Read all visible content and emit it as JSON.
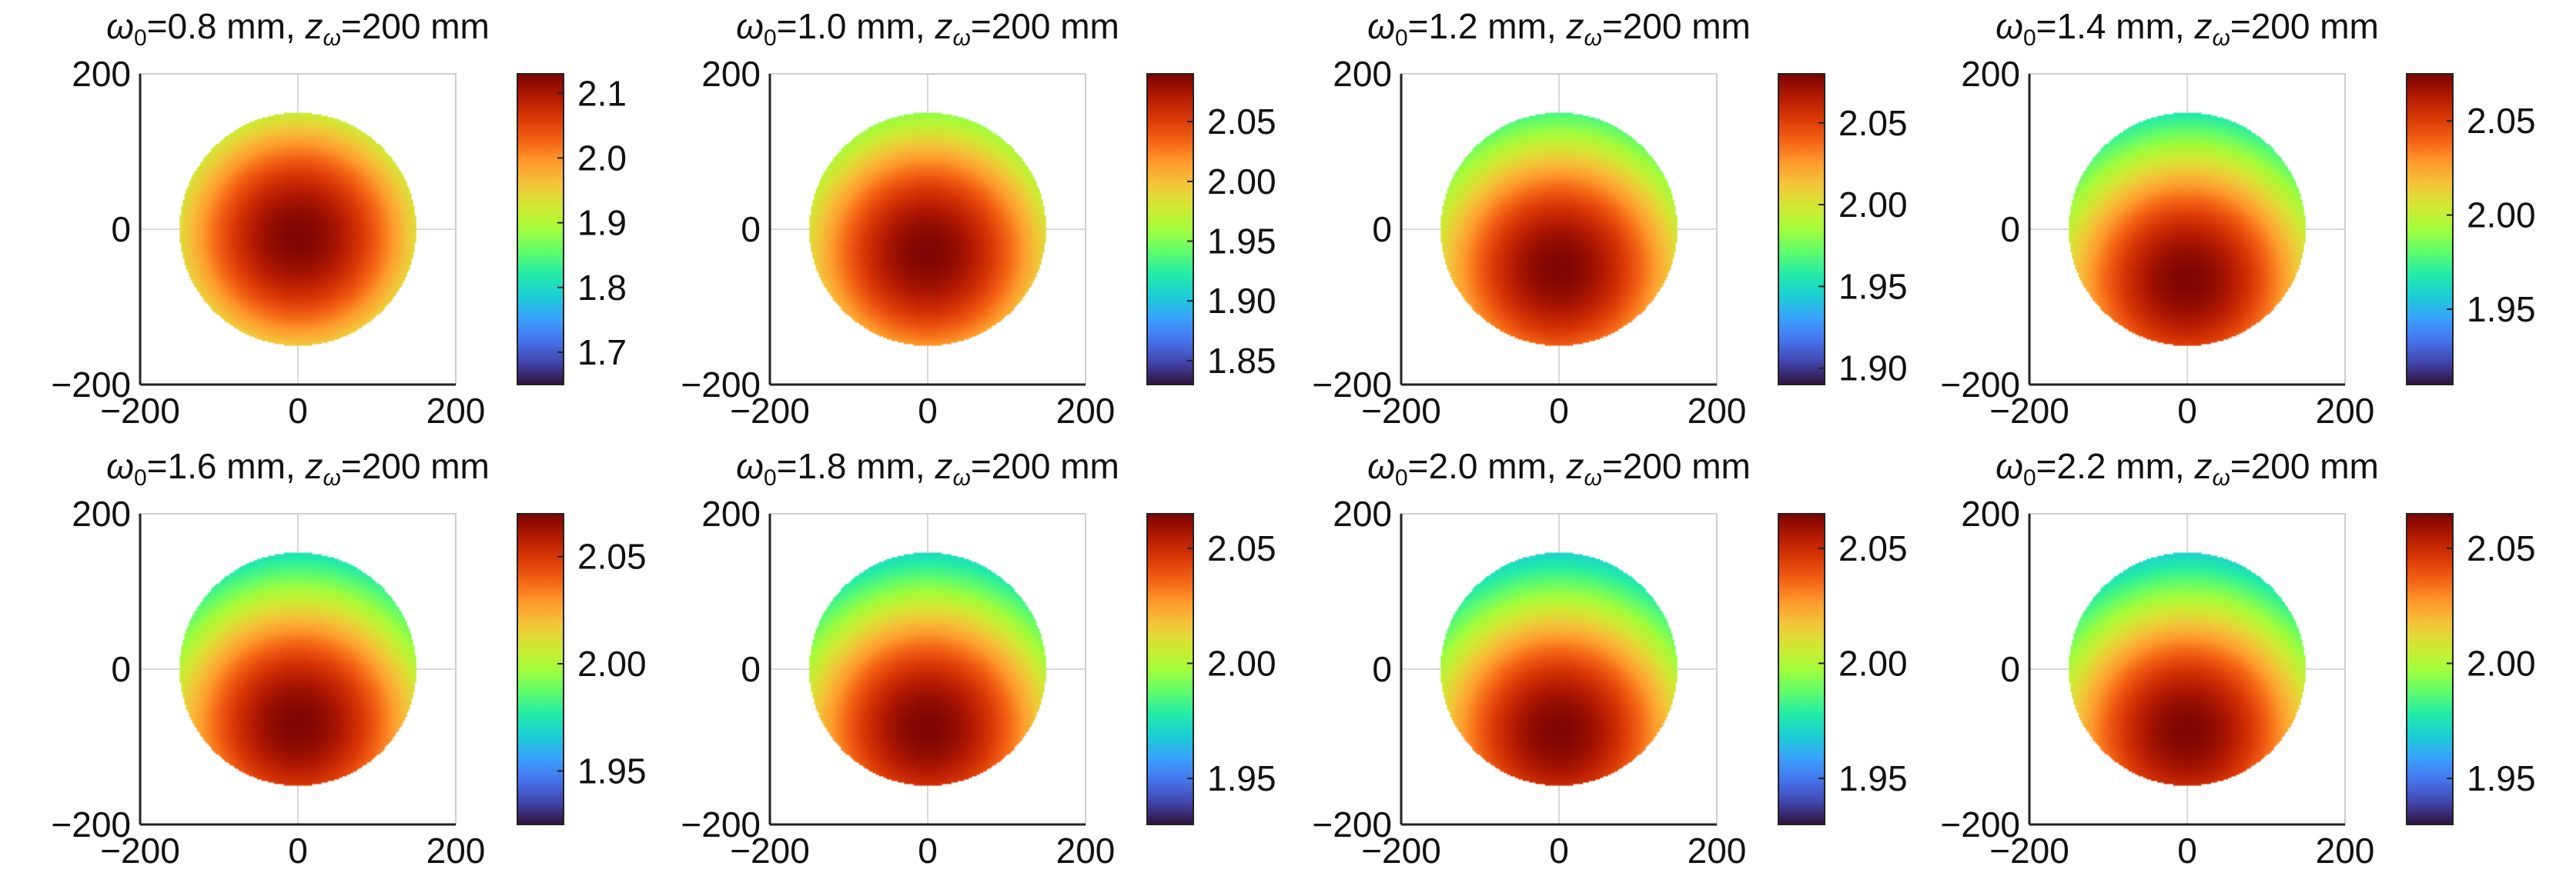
{
  "chart_data": [
    {
      "type": "heatmap",
      "title_prefix": "ω",
      "title_sub": "0",
      "title_value": "=0.8 mm, ",
      "title_z": "z",
      "title_zsub": "ω",
      "title_zvalue": "=200 mm",
      "xticks": [
        "−200",
        "0",
        "200"
      ],
      "yticks": [
        "200",
        "0",
        "−200"
      ],
      "xlim": [
        -200,
        200
      ],
      "ylim": [
        -200,
        200
      ],
      "aperture_radius": 150,
      "peak_y": -10,
      "cmin": 1.65,
      "cmax": 2.13,
      "cticks": [
        {
          "v": 1.7,
          "label": "1.7"
        },
        {
          "v": 1.8,
          "label": "1.8"
        },
        {
          "v": 1.9,
          "label": "1.9"
        },
        {
          "v": 2.0,
          "label": "2.0"
        },
        {
          "v": 2.1,
          "label": "2.1"
        }
      ]
    },
    {
      "type": "heatmap",
      "title_prefix": "ω",
      "title_sub": "0",
      "title_value": "=1.0 mm, ",
      "title_z": "z",
      "title_zsub": "ω",
      "title_zvalue": "=200 mm",
      "xticks": [
        "−200",
        "0",
        "200"
      ],
      "yticks": [
        "200",
        "0",
        "−200"
      ],
      "xlim": [
        -200,
        200
      ],
      "ylim": [
        -200,
        200
      ],
      "aperture_radius": 150,
      "peak_y": -30,
      "cmin": 1.83,
      "cmax": 2.09,
      "cticks": [
        {
          "v": 1.85,
          "label": "1.85"
        },
        {
          "v": 1.9,
          "label": "1.90"
        },
        {
          "v": 1.95,
          "label": "1.95"
        },
        {
          "v": 2.0,
          "label": "2.00"
        },
        {
          "v": 2.05,
          "label": "2.05"
        }
      ]
    },
    {
      "type": "heatmap",
      "title_prefix": "ω",
      "title_sub": "0",
      "title_value": "=1.2 mm, ",
      "title_z": "z",
      "title_zsub": "ω",
      "title_zvalue": "=200 mm",
      "xticks": [
        "−200",
        "0",
        "200"
      ],
      "yticks": [
        "200",
        "0",
        "−200"
      ],
      "xlim": [
        -200,
        200
      ],
      "ylim": [
        -200,
        200
      ],
      "aperture_radius": 150,
      "peak_y": -50,
      "cmin": 1.89,
      "cmax": 2.08,
      "cticks": [
        {
          "v": 1.9,
          "label": "1.90"
        },
        {
          "v": 1.95,
          "label": "1.95"
        },
        {
          "v": 2.0,
          "label": "2.00"
        },
        {
          "v": 2.05,
          "label": "2.05"
        }
      ]
    },
    {
      "type": "heatmap",
      "title_prefix": "ω",
      "title_sub": "0",
      "title_value": "=1.4 mm, ",
      "title_z": "z",
      "title_zsub": "ω",
      "title_zvalue": "=200 mm",
      "xticks": [
        "−200",
        "0",
        "200"
      ],
      "yticks": [
        "200",
        "0",
        "−200"
      ],
      "xlim": [
        -200,
        200
      ],
      "ylim": [
        -200,
        200
      ],
      "aperture_radius": 150,
      "peak_y": -65,
      "cmin": 1.91,
      "cmax": 2.075,
      "cticks": [
        {
          "v": 1.95,
          "label": "1.95"
        },
        {
          "v": 2.0,
          "label": "2.00"
        },
        {
          "v": 2.05,
          "label": "2.05"
        }
      ]
    },
    {
      "type": "heatmap",
      "title_prefix": "ω",
      "title_sub": "0",
      "title_value": "=1.6 mm, ",
      "title_z": "z",
      "title_zsub": "ω",
      "title_zvalue": "=200 mm",
      "xticks": [
        "−200",
        "0",
        "200"
      ],
      "yticks": [
        "200",
        "0",
        "−200"
      ],
      "xlim": [
        -200,
        200
      ],
      "ylim": [
        -200,
        200
      ],
      "aperture_radius": 150,
      "peak_y": -70,
      "cmin": 1.925,
      "cmax": 2.07,
      "cticks": [
        {
          "v": 1.95,
          "label": "1.95"
        },
        {
          "v": 2.0,
          "label": "2.00"
        },
        {
          "v": 2.05,
          "label": "2.05"
        }
      ]
    },
    {
      "type": "heatmap",
      "title_prefix": "ω",
      "title_sub": "0",
      "title_value": "=1.8 mm, ",
      "title_z": "z",
      "title_zsub": "ω",
      "title_zvalue": "=200 mm",
      "xticks": [
        "−200",
        "0",
        "200"
      ],
      "yticks": [
        "200",
        "0",
        "−200"
      ],
      "xlim": [
        -200,
        200
      ],
      "ylim": [
        -200,
        200
      ],
      "aperture_radius": 150,
      "peak_y": -75,
      "cmin": 1.93,
      "cmax": 2.065,
      "cticks": [
        {
          "v": 1.95,
          "label": "1.95"
        },
        {
          "v": 2.0,
          "label": "2.00"
        },
        {
          "v": 2.05,
          "label": "2.05"
        }
      ]
    },
    {
      "type": "heatmap",
      "title_prefix": "ω",
      "title_sub": "0",
      "title_value": "=2.0 mm, ",
      "title_z": "z",
      "title_zsub": "ω",
      "title_zvalue": "=200 mm",
      "xticks": [
        "−200",
        "0",
        "200"
      ],
      "yticks": [
        "200",
        "0",
        "−200"
      ],
      "xlim": [
        -200,
        200
      ],
      "ylim": [
        -200,
        200
      ],
      "aperture_radius": 150,
      "peak_y": -80,
      "cmin": 1.93,
      "cmax": 2.065,
      "cticks": [
        {
          "v": 1.95,
          "label": "1.95"
        },
        {
          "v": 2.0,
          "label": "2.00"
        },
        {
          "v": 2.05,
          "label": "2.05"
        }
      ]
    },
    {
      "type": "heatmap",
      "title_prefix": "ω",
      "title_sub": "0",
      "title_value": "=2.2 mm, ",
      "title_z": "z",
      "title_zsub": "ω",
      "title_zvalue": "=200 mm",
      "xticks": [
        "−200",
        "0",
        "200"
      ],
      "yticks": [
        "200",
        "0",
        "−200"
      ],
      "xlim": [
        -200,
        200
      ],
      "ylim": [
        -200,
        200
      ],
      "aperture_radius": 150,
      "peak_y": -80,
      "cmin": 1.93,
      "cmax": 2.065,
      "cticks": [
        {
          "v": 1.95,
          "label": "1.95"
        },
        {
          "v": 2.0,
          "label": "2.00"
        },
        {
          "v": 2.05,
          "label": "2.05"
        }
      ]
    }
  ],
  "colormap": [
    "#30123b",
    "#4145ab",
    "#4675ed",
    "#39a2fc",
    "#1bcfd4",
    "#24eca6",
    "#61fc6c",
    "#a4fc3b",
    "#d1e834",
    "#f3c63a",
    "#fe9b2d",
    "#f36315",
    "#d93806",
    "#b11901",
    "#7a0402"
  ]
}
